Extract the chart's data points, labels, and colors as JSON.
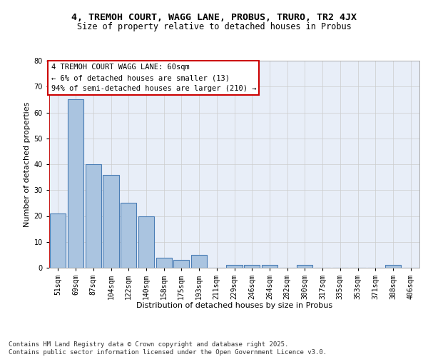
{
  "title1": "4, TREMOH COURT, WAGG LANE, PROBUS, TRURO, TR2 4JX",
  "title2": "Size of property relative to detached houses in Probus",
  "xlabel": "Distribution of detached houses by size in Probus",
  "ylabel": "Number of detached properties",
  "categories": [
    "51sqm",
    "69sqm",
    "87sqm",
    "104sqm",
    "122sqm",
    "140sqm",
    "158sqm",
    "175sqm",
    "193sqm",
    "211sqm",
    "229sqm",
    "246sqm",
    "264sqm",
    "282sqm",
    "300sqm",
    "317sqm",
    "335sqm",
    "353sqm",
    "371sqm",
    "388sqm",
    "406sqm"
  ],
  "values": [
    21,
    65,
    40,
    36,
    25,
    20,
    4,
    3,
    5,
    0,
    1,
    1,
    1,
    0,
    1,
    0,
    0,
    0,
    0,
    1,
    0
  ],
  "bar_color": "#aac4e0",
  "bar_edge_color": "#4a7db5",
  "highlight_line_color": "#cc0000",
  "ylim": [
    0,
    80
  ],
  "yticks": [
    0,
    10,
    20,
    30,
    40,
    50,
    60,
    70,
    80
  ],
  "grid_color": "#cccccc",
  "bg_color": "#e8eef8",
  "annotation_text": "4 TREMOH COURT WAGG LANE: 60sqm\n← 6% of detached houses are smaller (13)\n94% of semi-detached houses are larger (210) →",
  "annotation_box_color": "#ffffff",
  "annotation_border_color": "#cc0000",
  "footer_text": "Contains HM Land Registry data © Crown copyright and database right 2025.\nContains public sector information licensed under the Open Government Licence v3.0.",
  "title1_fontsize": 9.5,
  "title2_fontsize": 8.5,
  "xlabel_fontsize": 8,
  "ylabel_fontsize": 8,
  "tick_fontsize": 7,
  "annotation_fontsize": 7.5,
  "footer_fontsize": 6.5
}
